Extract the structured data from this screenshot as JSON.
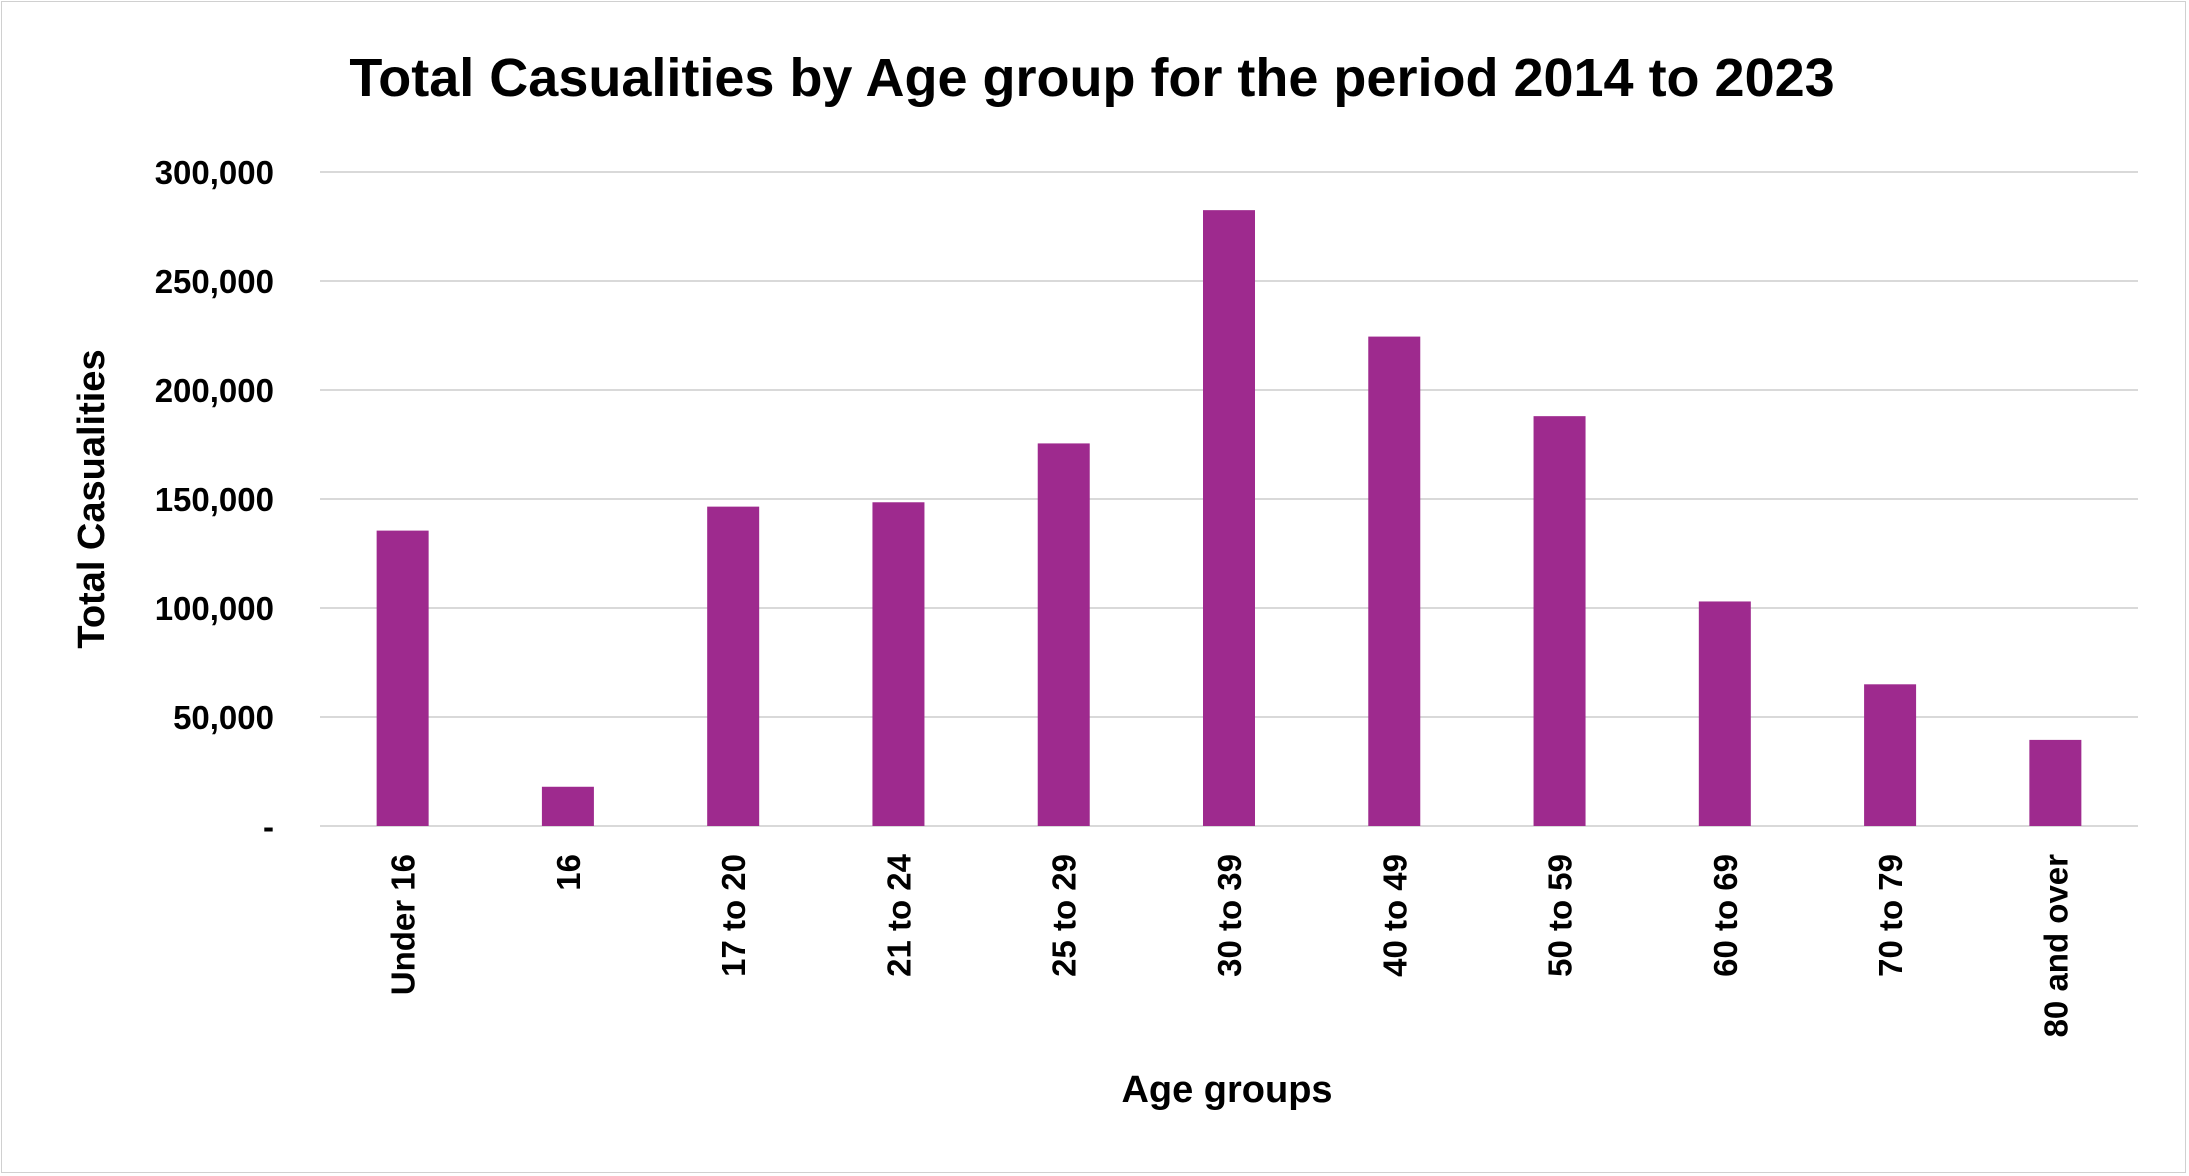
{
  "chart_data": {
    "type": "bar",
    "title": "Total Casualities by Age group for the  period 2014 to 2023",
    "xlabel": "Age groups",
    "ylabel": "Total Casualities",
    "categories": [
      "Under 16",
      "16",
      "17 to 20",
      "21 to 24",
      "25 to 29",
      "30 to 39",
      "40 to 49",
      "50 to 59",
      "60 to 69",
      "70 to 79",
      "80 and over"
    ],
    "values": [
      135500,
      18000,
      146500,
      148500,
      175500,
      282500,
      224500,
      188000,
      103000,
      65000,
      39500
    ],
    "ylim": [
      0,
      300000
    ],
    "yticks": [
      0,
      50000,
      100000,
      150000,
      200000,
      250000,
      300000
    ],
    "ytick_labels": [
      "-",
      "50,000",
      "100,000",
      "150,000",
      "200,000",
      "250,000",
      "300,000"
    ],
    "grid": true,
    "legend": "none",
    "bar_color": "#9e2a8e"
  }
}
